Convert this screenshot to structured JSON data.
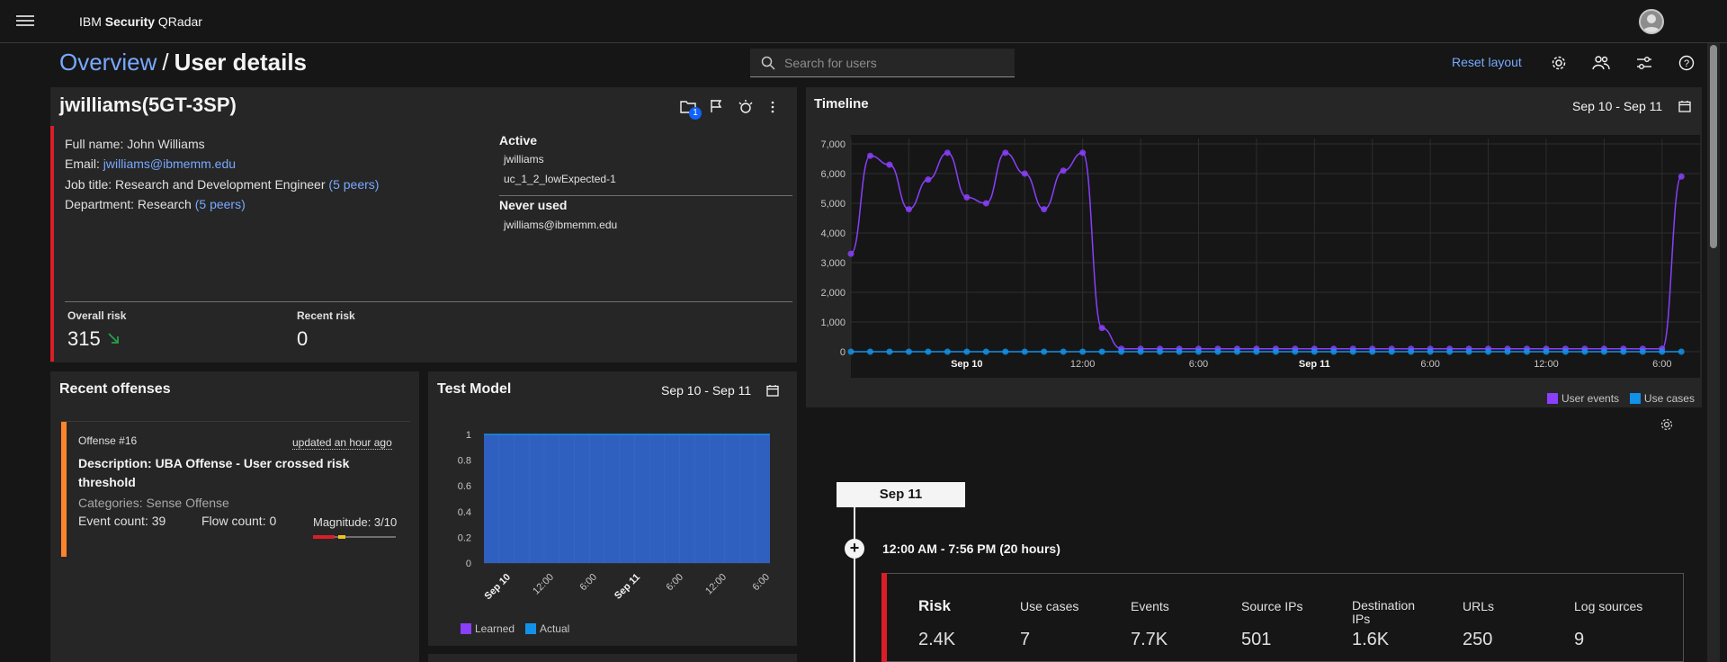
{
  "header": {
    "brand_prefix": "IBM ",
    "brand_bold": "Security",
    "brand_suffix": " QRadar"
  },
  "breadcrumb": {
    "parent": "Overview",
    "separator": "/",
    "current": "User details"
  },
  "search": {
    "placeholder": "Search for users"
  },
  "toolbar": {
    "reset_layout": "Reset layout",
    "icons": [
      "gear-icon",
      "user-groups-icon",
      "sliders-icon",
      "help-icon"
    ]
  },
  "user": {
    "title": "jwilliams(5GT-3SP)",
    "case_badge": "1",
    "full_name": "Full name: John Williams",
    "email_label": "Email: ",
    "email": "jwilliams@ibmemm.edu",
    "job_title": "Job title: Research and Development Engineer",
    "job_peers": "(5 peers)",
    "department": "Department: Research",
    "dept_peers": "(5 peers)",
    "active_heading": "Active",
    "active_accounts": [
      "jwilliams",
      "uc_1_2_lowExpected-1"
    ],
    "never_used_heading": "Never used",
    "never_used_accounts": [
      "jwilliams@ibmemm.edu"
    ],
    "overall_risk_label": "Overall risk",
    "overall_risk_value": "315",
    "recent_risk_label": "Recent risk",
    "recent_risk_value": "0"
  },
  "offenses": {
    "title": "Recent offenses",
    "items": [
      {
        "id": "Offense #16",
        "updated": "updated an hour ago",
        "description_line1": "Description: UBA Offense - User crossed risk",
        "description_line2": "threshold",
        "categories": "Categories: Sense Offense",
        "event_count": "Event count: 39",
        "flow_count": "Flow count: 0",
        "magnitude": "Magnitude: 3/10",
        "magnitude_value": 3
      }
    ]
  },
  "test_model": {
    "title": "Test Model",
    "date_range": "Sep 10 - Sep 11",
    "legend": [
      "Learned",
      "Actual"
    ]
  },
  "timeline": {
    "title": "Timeline",
    "date_range": "Sep 10 - Sep 11",
    "legend": [
      "User events",
      "Use cases"
    ]
  },
  "timeline_detail": {
    "day": "Sep 11",
    "range": "12:00 AM - 7:56 PM (20 hours)",
    "risk_label": "Risk",
    "risk_value": "2.4K",
    "stats": [
      {
        "label": "Use cases",
        "value": "7"
      },
      {
        "label": "Events",
        "value": "7.7K"
      },
      {
        "label": "Source IPs",
        "value": "501"
      },
      {
        "label": "Destination IPs",
        "value": "1.6K"
      },
      {
        "label": "URLs",
        "value": "250"
      },
      {
        "label": "Log sources",
        "value": "9"
      }
    ]
  },
  "colors": {
    "accent": "#78a9ff",
    "risk": "#da1e28",
    "user_events": "#8a3ffc",
    "use_cases": "#1192e8",
    "test_area": "#2f5fbf"
  },
  "chart_data": [
    {
      "type": "line",
      "name": "Timeline",
      "y_ticks": [
        "0",
        "1,000",
        "2,000",
        "3,000",
        "4,000",
        "5,000",
        "6,000",
        "7,000"
      ],
      "ylim": [
        0,
        7000
      ],
      "x_ticks": [
        "Sep 10",
        "12:00",
        "6:00",
        "Sep 11",
        "6:00",
        "12:00",
        "6:00"
      ],
      "x_tick_hours": [
        6,
        12,
        18,
        24,
        30,
        36,
        42
      ],
      "series": [
        {
          "name": "User events",
          "x_hours": [
            0,
            1,
            2,
            3,
            4,
            5,
            6,
            7,
            8,
            9,
            10,
            11,
            12,
            13,
            14,
            15,
            16,
            17,
            18,
            19,
            20,
            21,
            22,
            23,
            24,
            25,
            26,
            27,
            28,
            29,
            30,
            31,
            32,
            33,
            34,
            35,
            36,
            37,
            38,
            39,
            40,
            41,
            42,
            43
          ],
          "values": [
            3300,
            6600,
            6300,
            4800,
            5800,
            6700,
            5200,
            5000,
            6700,
            6000,
            4800,
            6100,
            6700,
            800,
            100,
            100,
            100,
            100,
            100,
            100,
            100,
            100,
            100,
            100,
            100,
            100,
            100,
            100,
            100,
            100,
            100,
            100,
            100,
            100,
            100,
            100,
            100,
            100,
            100,
            100,
            100,
            100,
            100,
            5900
          ]
        },
        {
          "name": "Use cases",
          "x_hours": [
            0,
            1,
            2,
            3,
            4,
            5,
            6,
            7,
            8,
            9,
            10,
            11,
            12,
            13,
            14,
            15,
            16,
            17,
            18,
            19,
            20,
            21,
            22,
            23,
            24,
            25,
            26,
            27,
            28,
            29,
            30,
            31,
            32,
            33,
            34,
            35,
            36,
            37,
            38,
            39,
            40,
            41,
            42,
            43
          ],
          "values": [
            0,
            0,
            0,
            0,
            0,
            0,
            0,
            0,
            0,
            0,
            0,
            0,
            0,
            0,
            0,
            0,
            0,
            0,
            0,
            0,
            0,
            0,
            0,
            0,
            0,
            0,
            0,
            0,
            0,
            0,
            0,
            0,
            0,
            0,
            0,
            0,
            0,
            0,
            0,
            0,
            0,
            0,
            0,
            0
          ]
        }
      ]
    },
    {
      "type": "area",
      "name": "Test Model",
      "y_ticks": [
        "0",
        "0.2",
        "0.4",
        "0.6",
        "0.8",
        "1"
      ],
      "ylim": [
        0,
        1
      ],
      "x_ticks": [
        "Sep 10",
        "12:00",
        "6:00",
        "Sep 11",
        "6:00",
        "12:00",
        "6:00"
      ],
      "series": [
        {
          "name": "Learned",
          "values": [
            1,
            1
          ]
        },
        {
          "name": "Actual",
          "values": [
            1,
            1
          ]
        }
      ]
    }
  ]
}
